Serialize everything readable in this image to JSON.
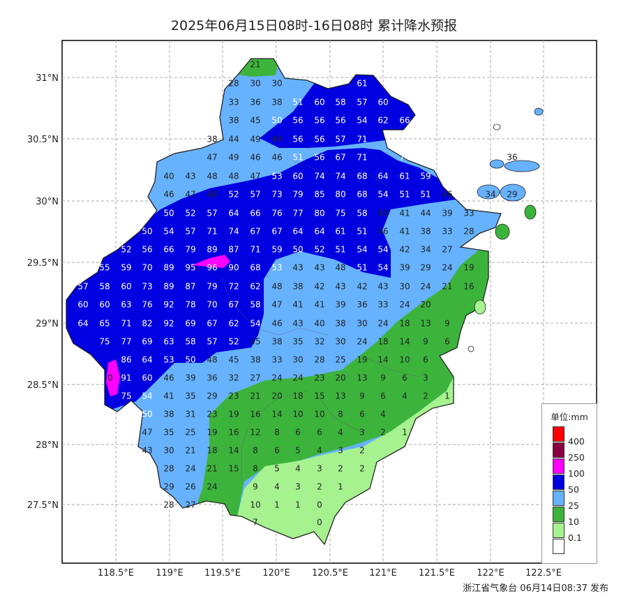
{
  "title": "2025年06月15日08时-16日08时 累计降水预报",
  "footer": "浙江省气象台 06月14日08:37 发布",
  "axes": {
    "lon_labels": [
      "118.5°E",
      "119°E",
      "119.5°E",
      "120°E",
      "120.5°E",
      "121°E",
      "121.5°E",
      "122°E",
      "122.5°E"
    ],
    "lat_labels": [
      "31°N",
      "30.5°N",
      "30°N",
      "29.5°N",
      "29°N",
      "28.5°N",
      "28°N",
      "27.5°N"
    ]
  },
  "legend": {
    "title": "单位:mm",
    "items": [
      {
        "label": "400",
        "color": "#ff0000"
      },
      {
        "label": "250",
        "color": "#8b0045"
      },
      {
        "label": "100",
        "color": "#ff00ff"
      },
      {
        "label": "50",
        "color": "#0000e0"
      },
      {
        "label": "25",
        "color": "#66b2ff"
      },
      {
        "label": "10",
        "color": "#3cb43c"
      },
      {
        "label": "0.1",
        "color": "#a6f28f"
      },
      {
        "label": "",
        "color": "#ffffff"
      }
    ]
  },
  "colors": {
    "white": "#ffffff",
    "lightgreen": "#a6f28f",
    "green": "#3cb43c",
    "lightblue": "#66b2ff",
    "blue": "#0000e0",
    "magenta": "#ff00ff"
  },
  "values": [
    [
      366,
      93,
      "21"
    ],
    [
      335,
      120,
      "28"
    ],
    [
      366,
      120,
      "30"
    ],
    [
      397,
      120,
      "30"
    ],
    [
      519,
      120,
      "61"
    ],
    [
      335,
      147,
      "33"
    ],
    [
      366,
      147,
      "36"
    ],
    [
      397,
      147,
      "38"
    ],
    [
      427,
      147,
      "51"
    ],
    [
      458,
      147,
      "60"
    ],
    [
      488,
      147,
      "58"
    ],
    [
      519,
      147,
      "57"
    ],
    [
      549,
      147,
      "60"
    ],
    [
      335,
      173,
      "38"
    ],
    [
      366,
      173,
      "45"
    ],
    [
      397,
      173,
      "50"
    ],
    [
      427,
      173,
      "56"
    ],
    [
      458,
      173,
      "56"
    ],
    [
      488,
      173,
      "56"
    ],
    [
      519,
      173,
      "54"
    ],
    [
      549,
      173,
      "62"
    ],
    [
      580,
      173,
      "66"
    ],
    [
      304,
      200,
      "38"
    ],
    [
      335,
      200,
      "44"
    ],
    [
      366,
      200,
      "49"
    ],
    [
      397,
      200,
      "49"
    ],
    [
      427,
      200,
      "56"
    ],
    [
      458,
      200,
      "56"
    ],
    [
      488,
      200,
      "57"
    ],
    [
      519,
      200,
      "71"
    ],
    [
      304,
      226,
      "47"
    ],
    [
      335,
      226,
      "49"
    ],
    [
      366,
      226,
      "46"
    ],
    [
      397,
      226,
      "46"
    ],
    [
      427,
      226,
      "51"
    ],
    [
      458,
      226,
      "56"
    ],
    [
      488,
      226,
      "67"
    ],
    [
      519,
      226,
      "71"
    ],
    [
      580,
      226,
      "74"
    ],
    [
      242,
      253,
      "40"
    ],
    [
      273,
      253,
      "43"
    ],
    [
      304,
      253,
      "48"
    ],
    [
      335,
      253,
      "48"
    ],
    [
      366,
      253,
      "47"
    ],
    [
      397,
      253,
      "53"
    ],
    [
      427,
      253,
      "60"
    ],
    [
      458,
      253,
      "74"
    ],
    [
      488,
      253,
      "74"
    ],
    [
      519,
      253,
      "68"
    ],
    [
      549,
      253,
      "64"
    ],
    [
      580,
      253,
      "61"
    ],
    [
      610,
      253,
      "59"
    ],
    [
      242,
      279,
      "46"
    ],
    [
      273,
      279,
      "47"
    ],
    [
      304,
      279,
      "48"
    ],
    [
      335,
      279,
      "52"
    ],
    [
      366,
      279,
      "57"
    ],
    [
      397,
      279,
      "73"
    ],
    [
      427,
      279,
      "79"
    ],
    [
      458,
      279,
      "85"
    ],
    [
      488,
      279,
      "80"
    ],
    [
      519,
      279,
      "68"
    ],
    [
      549,
      279,
      "54"
    ],
    [
      580,
      279,
      "51"
    ],
    [
      610,
      279,
      "51"
    ],
    [
      641,
      279,
      "46"
    ],
    [
      703,
      279,
      "34"
    ],
    [
      734,
      279,
      "29"
    ],
    [
      242,
      306,
      "50"
    ],
    [
      273,
      306,
      "52"
    ],
    [
      304,
      306,
      "57"
    ],
    [
      335,
      306,
      "64"
    ],
    [
      366,
      306,
      "66"
    ],
    [
      397,
      306,
      "76"
    ],
    [
      427,
      306,
      "77"
    ],
    [
      458,
      306,
      "80"
    ],
    [
      488,
      306,
      "75"
    ],
    [
      519,
      306,
      "58"
    ],
    [
      549,
      306,
      "45"
    ],
    [
      580,
      306,
      "41"
    ],
    [
      610,
      306,
      "44"
    ],
    [
      641,
      306,
      "39"
    ],
    [
      672,
      306,
      "33"
    ],
    [
      211,
      332,
      "50"
    ],
    [
      242,
      332,
      "54"
    ],
    [
      273,
      332,
      "57"
    ],
    [
      304,
      332,
      "71"
    ],
    [
      335,
      332,
      "74"
    ],
    [
      366,
      332,
      "67"
    ],
    [
      397,
      332,
      "67"
    ],
    [
      427,
      332,
      "64"
    ],
    [
      458,
      332,
      "64"
    ],
    [
      488,
      332,
      "61"
    ],
    [
      519,
      332,
      "51"
    ],
    [
      549,
      332,
      "46"
    ],
    [
      580,
      332,
      "41"
    ],
    [
      610,
      332,
      "38"
    ],
    [
      641,
      332,
      "33"
    ],
    [
      672,
      332,
      "28"
    ],
    [
      181,
      358,
      "52"
    ],
    [
      211,
      358,
      "56"
    ],
    [
      242,
      358,
      "66"
    ],
    [
      273,
      358,
      "79"
    ],
    [
      304,
      358,
      "89"
    ],
    [
      335,
      358,
      "87"
    ],
    [
      366,
      358,
      "71"
    ],
    [
      397,
      358,
      "59"
    ],
    [
      427,
      358,
      "50"
    ],
    [
      458,
      358,
      "52"
    ],
    [
      488,
      358,
      "51"
    ],
    [
      519,
      358,
      "54"
    ],
    [
      549,
      358,
      "54"
    ],
    [
      580,
      358,
      "42"
    ],
    [
      610,
      358,
      "34"
    ],
    [
      641,
      358,
      "27"
    ],
    [
      150,
      384,
      "55"
    ],
    [
      181,
      384,
      "59"
    ],
    [
      211,
      384,
      "70"
    ],
    [
      242,
      384,
      "89"
    ],
    [
      273,
      384,
      "95"
    ],
    [
      304,
      384,
      "96"
    ],
    [
      335,
      384,
      "90"
    ],
    [
      366,
      384,
      "68"
    ],
    [
      397,
      384,
      "53"
    ],
    [
      427,
      384,
      "43"
    ],
    [
      458,
      384,
      "43"
    ],
    [
      488,
      384,
      "48"
    ],
    [
      519,
      384,
      "51"
    ],
    [
      549,
      384,
      "54"
    ],
    [
      580,
      384,
      "39"
    ],
    [
      610,
      384,
      "29"
    ],
    [
      641,
      384,
      "24"
    ],
    [
      672,
      384,
      "19"
    ],
    [
      119,
      411,
      "57"
    ],
    [
      150,
      411,
      "58"
    ],
    [
      181,
      411,
      "60"
    ],
    [
      211,
      411,
      "73"
    ],
    [
      242,
      411,
      "89"
    ],
    [
      273,
      411,
      "87"
    ],
    [
      304,
      411,
      "79"
    ],
    [
      335,
      411,
      "72"
    ],
    [
      366,
      411,
      "62"
    ],
    [
      397,
      411,
      "48"
    ],
    [
      427,
      411,
      "38"
    ],
    [
      458,
      411,
      "42"
    ],
    [
      488,
      411,
      "43"
    ],
    [
      519,
      411,
      "42"
    ],
    [
      549,
      411,
      "43"
    ],
    [
      580,
      411,
      "30"
    ],
    [
      610,
      411,
      "24"
    ],
    [
      641,
      411,
      "21"
    ],
    [
      672,
      411,
      "16"
    ],
    [
      119,
      437,
      "60"
    ],
    [
      150,
      437,
      "60"
    ],
    [
      181,
      437,
      "63"
    ],
    [
      211,
      437,
      "76"
    ],
    [
      242,
      437,
      "92"
    ],
    [
      273,
      437,
      "78"
    ],
    [
      304,
      437,
      "70"
    ],
    [
      335,
      437,
      "67"
    ],
    [
      366,
      437,
      "58"
    ],
    [
      397,
      437,
      "47"
    ],
    [
      427,
      437,
      "41"
    ],
    [
      458,
      437,
      "41"
    ],
    [
      488,
      437,
      "39"
    ],
    [
      519,
      437,
      "36"
    ],
    [
      549,
      437,
      "33"
    ],
    [
      580,
      437,
      "24"
    ],
    [
      610,
      437,
      "20"
    ],
    [
      119,
      464,
      "64"
    ],
    [
      150,
      464,
      "65"
    ],
    [
      181,
      464,
      "71"
    ],
    [
      211,
      464,
      "82"
    ],
    [
      242,
      464,
      "92"
    ],
    [
      273,
      464,
      "69"
    ],
    [
      304,
      464,
      "67"
    ],
    [
      335,
      464,
      "62"
    ],
    [
      366,
      464,
      "54"
    ],
    [
      397,
      464,
      "46"
    ],
    [
      427,
      464,
      "43"
    ],
    [
      458,
      464,
      "40"
    ],
    [
      488,
      464,
      "38"
    ],
    [
      519,
      464,
      "30"
    ],
    [
      549,
      464,
      "24"
    ],
    [
      580,
      464,
      "18"
    ],
    [
      610,
      464,
      "13"
    ],
    [
      641,
      464,
      "9"
    ],
    [
      150,
      490,
      "75"
    ],
    [
      181,
      490,
      "77"
    ],
    [
      211,
      490,
      "69"
    ],
    [
      242,
      490,
      "63"
    ],
    [
      273,
      490,
      "58"
    ],
    [
      304,
      490,
      "57"
    ],
    [
      335,
      490,
      "52"
    ],
    [
      366,
      490,
      "45"
    ],
    [
      397,
      490,
      "38"
    ],
    [
      427,
      490,
      "35"
    ],
    [
      458,
      490,
      "32"
    ],
    [
      488,
      490,
      "30"
    ],
    [
      519,
      490,
      "24"
    ],
    [
      549,
      490,
      "18"
    ],
    [
      580,
      490,
      "14"
    ],
    [
      610,
      490,
      "9"
    ],
    [
      641,
      490,
      "6"
    ],
    [
      181,
      516,
      "86"
    ],
    [
      211,
      516,
      "64"
    ],
    [
      242,
      516,
      "53"
    ],
    [
      273,
      516,
      "50"
    ],
    [
      304,
      516,
      "48"
    ],
    [
      335,
      516,
      "45"
    ],
    [
      366,
      516,
      "38"
    ],
    [
      397,
      516,
      "33"
    ],
    [
      427,
      516,
      "30"
    ],
    [
      458,
      516,
      "28"
    ],
    [
      488,
      516,
      "25"
    ],
    [
      519,
      516,
      "19"
    ],
    [
      549,
      516,
      "14"
    ],
    [
      580,
      516,
      "10"
    ],
    [
      610,
      516,
      "6"
    ],
    [
      158,
      542,
      "0"
    ],
    [
      181,
      542,
      "91"
    ],
    [
      211,
      542,
      "60"
    ],
    [
      242,
      542,
      "46"
    ],
    [
      273,
      542,
      "39"
    ],
    [
      304,
      542,
      "36"
    ],
    [
      335,
      542,
      "32"
    ],
    [
      366,
      542,
      "27"
    ],
    [
      397,
      542,
      "24"
    ],
    [
      427,
      542,
      "24"
    ],
    [
      458,
      542,
      "23"
    ],
    [
      488,
      542,
      "20"
    ],
    [
      519,
      542,
      "13"
    ],
    [
      549,
      542,
      "9"
    ],
    [
      580,
      542,
      "6"
    ],
    [
      610,
      542,
      "3"
    ],
    [
      181,
      568,
      "75"
    ],
    [
      211,
      568,
      "54"
    ],
    [
      242,
      568,
      "41"
    ],
    [
      273,
      568,
      "35"
    ],
    [
      304,
      568,
      "29"
    ],
    [
      335,
      568,
      "23"
    ],
    [
      366,
      568,
      "21"
    ],
    [
      397,
      568,
      "20"
    ],
    [
      427,
      568,
      "18"
    ],
    [
      458,
      568,
      "15"
    ],
    [
      488,
      568,
      "13"
    ],
    [
      519,
      568,
      "9"
    ],
    [
      549,
      568,
      "6"
    ],
    [
      580,
      568,
      "4"
    ],
    [
      610,
      568,
      "2"
    ],
    [
      641,
      568,
      "1"
    ],
    [
      211,
      594,
      "50"
    ],
    [
      242,
      594,
      "38"
    ],
    [
      273,
      594,
      "31"
    ],
    [
      304,
      594,
      "23"
    ],
    [
      335,
      594,
      "19"
    ],
    [
      366,
      594,
      "16"
    ],
    [
      397,
      594,
      "14"
    ],
    [
      427,
      594,
      "10"
    ],
    [
      458,
      594,
      "10"
    ],
    [
      488,
      594,
      "8"
    ],
    [
      519,
      594,
      "6"
    ],
    [
      549,
      594,
      "4"
    ],
    [
      211,
      620,
      "47"
    ],
    [
      242,
      620,
      "35"
    ],
    [
      273,
      620,
      "25"
    ],
    [
      304,
      620,
      "19"
    ],
    [
      335,
      620,
      "16"
    ],
    [
      366,
      620,
      "12"
    ],
    [
      397,
      620,
      "8"
    ],
    [
      427,
      620,
      "6"
    ],
    [
      458,
      620,
      "6"
    ],
    [
      488,
      620,
      "4"
    ],
    [
      519,
      620,
      "3"
    ],
    [
      549,
      620,
      "2"
    ],
    [
      580,
      620,
      "1"
    ],
    [
      211,
      646,
      "43"
    ],
    [
      242,
      646,
      "30"
    ],
    [
      273,
      646,
      "21"
    ],
    [
      304,
      646,
      "18"
    ],
    [
      335,
      646,
      "14"
    ],
    [
      366,
      646,
      "8"
    ],
    [
      397,
      646,
      "6"
    ],
    [
      427,
      646,
      "5"
    ],
    [
      458,
      646,
      "4"
    ],
    [
      488,
      646,
      "3"
    ],
    [
      519,
      646,
      "2"
    ],
    [
      242,
      672,
      "28"
    ],
    [
      273,
      672,
      "24"
    ],
    [
      304,
      672,
      "21"
    ],
    [
      335,
      672,
      "15"
    ],
    [
      366,
      672,
      "8"
    ],
    [
      397,
      672,
      "5"
    ],
    [
      427,
      672,
      "4"
    ],
    [
      458,
      672,
      "3"
    ],
    [
      488,
      672,
      "2"
    ],
    [
      519,
      672,
      "2"
    ],
    [
      242,
      698,
      "29"
    ],
    [
      273,
      698,
      "26"
    ],
    [
      304,
      698,
      "24"
    ],
    [
      366,
      698,
      "9"
    ],
    [
      397,
      698,
      "4"
    ],
    [
      427,
      698,
      "3"
    ],
    [
      458,
      698,
      "2"
    ],
    [
      488,
      698,
      "1"
    ],
    [
      242,
      724,
      "28"
    ],
    [
      273,
      724,
      "27"
    ],
    [
      366,
      724,
      "10"
    ],
    [
      397,
      724,
      "1"
    ],
    [
      427,
      724,
      "1"
    ],
    [
      458,
      724,
      "0"
    ],
    [
      366,
      749,
      "7"
    ],
    [
      458,
      749,
      "0"
    ],
    [
      734,
      226,
      "36"
    ]
  ]
}
